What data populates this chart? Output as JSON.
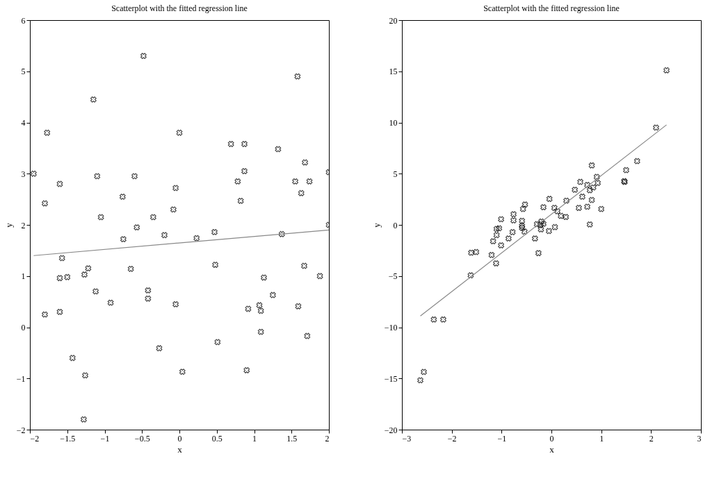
{
  "chart_data": [
    {
      "type": "scatter",
      "title": "Scatterplot with the fitted regression line",
      "xlabel": "x",
      "ylabel": "y",
      "xlim": [
        -2,
        2
      ],
      "ylim": [
        -2,
        6
      ],
      "xticks": [
        -2,
        -1.5,
        -1,
        -0.5,
        0,
        0.5,
        1,
        1.5,
        2
      ],
      "yticks": [
        -2,
        -1,
        0,
        1,
        2,
        3,
        4,
        5,
        6
      ],
      "grid": false,
      "series": [
        {
          "marker": "cross",
          "color": "#000000",
          "x": [
            -1.95,
            -1.8,
            -1.77,
            -1.6,
            -1.15,
            -1.1,
            -1.05,
            -0.48,
            -0.6,
            -0.76,
            -0.57,
            -0.35,
            -0.08,
            -0.05,
            0.0,
            0.69,
            0.87,
            0.78,
            0.87,
            0.82,
            1.32,
            1.58,
            1.68,
            1.55,
            1.74,
            1.63,
            2.0,
            2.0,
            -0.75,
            -0.2,
            0.23,
            0.47,
            1.37,
            -1.57,
            -1.6,
            -1.5,
            -1.27,
            -1.22,
            -0.65,
            -1.12,
            -0.92,
            -0.42,
            -0.42,
            -0.05,
            0.48,
            1.13,
            1.67,
            1.88,
            1.25,
            0.92,
            1.07,
            1.09,
            1.59,
            1.09,
            1.71,
            0.51,
            -0.27,
            -1.8,
            -1.6,
            -1.43,
            -1.26,
            0.04,
            0.9,
            -1.28
          ],
          "values": [
            3.0,
            2.42,
            3.8,
            2.8,
            4.45,
            2.95,
            2.15,
            5.3,
            2.95,
            2.55,
            1.95,
            2.15,
            2.3,
            2.72,
            3.8,
            3.58,
            3.58,
            2.85,
            3.05,
            2.47,
            3.48,
            4.9,
            3.22,
            2.85,
            2.85,
            2.62,
            3.03,
            2.0,
            1.72,
            1.8,
            1.74,
            1.86,
            1.82,
            1.35,
            0.96,
            0.98,
            1.03,
            1.15,
            1.14,
            0.7,
            0.48,
            0.72,
            0.56,
            0.45,
            1.22,
            0.97,
            1.2,
            1.0,
            0.63,
            0.36,
            0.43,
            0.32,
            0.41,
            -0.09,
            -0.17,
            -0.29,
            -0.41,
            0.25,
            0.3,
            -0.6,
            -0.94,
            -0.87,
            -0.84,
            -1.8
          ]
        },
        {
          "type": "line",
          "marker": "none",
          "line_style": "solid",
          "color": "#888888",
          "x": [
            -1.95,
            2.0
          ],
          "values": [
            1.4,
            1.9
          ]
        }
      ]
    },
    {
      "type": "scatter",
      "title": "Scatterplot with the fitted regression line",
      "xlabel": "x",
      "ylabel": "y",
      "xlim": [
        -3,
        3
      ],
      "ylim": [
        -20,
        20
      ],
      "xticks": [
        -3,
        -2,
        -1,
        0,
        1,
        2,
        3
      ],
      "yticks": [
        -20,
        -15,
        -10,
        -5,
        0,
        5,
        10,
        15,
        20
      ],
      "grid": false,
      "series": [
        {
          "marker": "cross",
          "color": "#000000",
          "x": [
            2.31,
            2.1,
            1.72,
            1.5,
            1.46,
            1.47,
            0.81,
            0.91,
            0.93,
            0.58,
            0.72,
            0.77,
            0.84,
            0.47,
            0.62,
            0.81,
            1.0,
            0.72,
            0.55,
            0.77,
            0.3,
            0.29,
            0.19,
            0.12,
            0.06,
            -0.04,
            -0.16,
            -0.53,
            -0.57,
            -0.76,
            -0.76,
            -1.01,
            -0.59,
            -0.59,
            -0.29,
            -0.2,
            -0.16,
            -0.22,
            0.07,
            -1.05,
            -1.1,
            -1.1,
            -1.17,
            -1.01,
            -0.86,
            -0.78,
            -0.54,
            -0.59,
            -0.33,
            -0.21,
            -0.05,
            -0.26,
            -1.61,
            -1.51,
            -1.2,
            -1.11,
            -1.62,
            -2.36,
            -2.17,
            -2.56,
            -2.63
          ],
          "values": [
            15.1,
            9.5,
            6.23,
            5.35,
            4.27,
            4.2,
            5.81,
            4.69,
            4.09,
            4.2,
            3.9,
            3.38,
            3.65,
            3.43,
            2.76,
            2.43,
            1.55,
            1.77,
            1.66,
            0.04,
            2.36,
            0.77,
            0.88,
            1.33,
            1.66,
            2.54,
            1.72,
            1.99,
            1.55,
            1.04,
            0.44,
            0.55,
            0.4,
            -0.1,
            0.07,
            0.33,
            0.11,
            0.0,
            -0.22,
            -0.33,
            -0.4,
            -1.0,
            -1.6,
            -2.0,
            -1.33,
            -0.71,
            -0.66,
            -0.29,
            -1.33,
            -0.44,
            -0.6,
            -2.76,
            -2.72,
            -2.65,
            -2.94,
            -3.76,
            -4.93,
            -9.24,
            -9.24,
            -14.36,
            -15.18
          ]
        },
        {
          "type": "line",
          "marker": "none",
          "line_style": "solid",
          "color": "#888888",
          "x": [
            -2.63,
            2.31
          ],
          "values": [
            -8.9,
            9.77
          ]
        }
      ]
    }
  ]
}
